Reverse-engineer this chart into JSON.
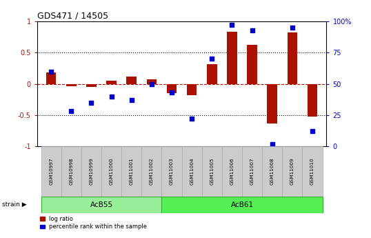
{
  "title": "GDS471 / 14505",
  "samples": [
    "GSM10997",
    "GSM10998",
    "GSM10999",
    "GSM11000",
    "GSM11001",
    "GSM11002",
    "GSM11003",
    "GSM11004",
    "GSM11005",
    "GSM11006",
    "GSM11007",
    "GSM11008",
    "GSM11009",
    "GSM11010"
  ],
  "log_ratio": [
    0.18,
    -0.04,
    -0.05,
    0.05,
    0.12,
    0.07,
    -0.15,
    -0.18,
    0.32,
    0.84,
    0.62,
    -0.63,
    0.82,
    -0.52
  ],
  "percentile_rank": [
    60,
    28,
    35,
    40,
    37,
    50,
    43,
    22,
    70,
    97,
    93,
    2,
    95,
    12
  ],
  "groups": [
    {
      "label": "AcB55",
      "start": 0,
      "end": 5,
      "color": "#99ee99"
    },
    {
      "label": "AcB61",
      "start": 6,
      "end": 13,
      "color": "#55ee55"
    }
  ],
  "group_row_label": "strain",
  "log_ratio_color": "#aa1100",
  "percentile_color": "#0000cc",
  "left_ylim": [
    -1,
    1
  ],
  "right_ylim": [
    0,
    100
  ],
  "left_yticks": [
    -1,
    -0.5,
    0,
    0.5,
    1
  ],
  "right_yticks": [
    0,
    25,
    50,
    75,
    100
  ],
  "right_yticklabels": [
    "0",
    "25",
    "50",
    "75",
    "100%"
  ],
  "background_color": "#ffffff",
  "plot_bg_color": "#ffffff",
  "bar_width": 0.5,
  "acb55_color": "#aaddaa",
  "acb61_color": "#55ee55",
  "sample_box_color": "#cccccc",
  "sample_box_edge": "#aaaaaa"
}
